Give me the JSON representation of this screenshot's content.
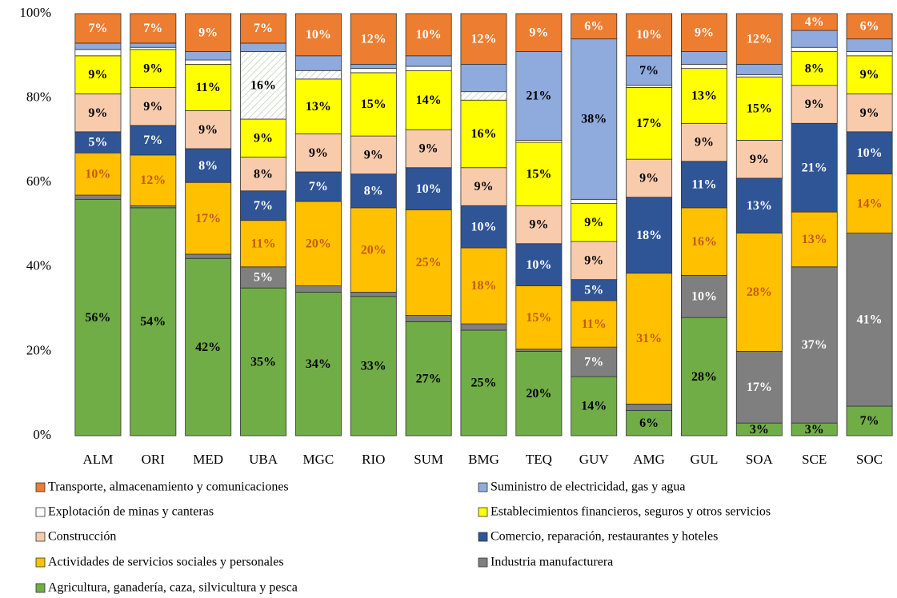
{
  "chart_data": {
    "type": "stacked_bar",
    "categories": [
      "ALM",
      "ORI",
      "MED",
      "UBA",
      "MGC",
      "RIO",
      "SUM",
      "BMG",
      "TEQ",
      "GUV",
      "AMG",
      "GUL",
      "SOA",
      "SCE",
      "SOC"
    ],
    "ylim": [
      0,
      100
    ],
    "yticks": [
      {
        "value": 0,
        "label": "0%"
      },
      {
        "value": 20,
        "label": "20%"
      },
      {
        "value": 40,
        "label": "40%"
      },
      {
        "value": 60,
        "label": "60%"
      },
      {
        "value": 80,
        "label": "80%"
      },
      {
        "value": 100,
        "label": "100%"
      }
    ],
    "grid": false,
    "series": [
      {
        "name": "Transporte, almacenamiento y comunicaciones",
        "color": "#ed7d31",
        "label_color": "#ffffff",
        "values": [
          7,
          7,
          9,
          7,
          10,
          12,
          10,
          12,
          9,
          6,
          10,
          9,
          12,
          4,
          6
        ],
        "value_labels": [
          "7%",
          "7%",
          "9%",
          "7%",
          "10%",
          "12%",
          "10%",
          "12%",
          "9%",
          "6%",
          "10%",
          "9%",
          "12%",
          "4%",
          "6%"
        ]
      },
      {
        "name": "Suministro de electricidad, gas y agua",
        "color": "#8faadc",
        "label_color": "#000000",
        "values": [
          1.5,
          1,
          2,
          2,
          3.5,
          1,
          2.5,
          6.5,
          21,
          38,
          7,
          3,
          2.5,
          4,
          3
        ],
        "value_labels": [
          null,
          null,
          null,
          null,
          null,
          null,
          null,
          null,
          "21%",
          "38%",
          "7%",
          null,
          null,
          null,
          null
        ]
      },
      {
        "name": "Explotación de minas y canteras",
        "color": "#ffffff",
        "label_color": "#000000",
        "values": [
          1.5,
          0.5,
          1,
          16,
          2,
          1,
          1,
          2,
          0.5,
          1,
          0.5,
          1,
          0.5,
          1,
          1
        ],
        "value_labels": [
          null,
          null,
          null,
          "16%",
          null,
          null,
          null,
          null,
          null,
          null,
          null,
          null,
          null,
          null,
          null
        ]
      },
      {
        "name": "Establecimientos financieros, seguros y otros servicios",
        "color": "#ffff00",
        "label_color": "#000000",
        "values": [
          9,
          9,
          11,
          9,
          13,
          15,
          14,
          16,
          15,
          9,
          17,
          13,
          15,
          8,
          9
        ],
        "value_labels": [
          "9%",
          "9%",
          "11%",
          "9%",
          "13%",
          "15%",
          "14%",
          "16%",
          "15%",
          "9%",
          "17%",
          "13%",
          "15%",
          "8%",
          "9%"
        ]
      },
      {
        "name": "Construcción",
        "color": "#f8cbad",
        "label_color": "#000000",
        "values": [
          9,
          9,
          9,
          8,
          9,
          9,
          9,
          9,
          9,
          9,
          9,
          9,
          9,
          9,
          9
        ],
        "value_labels": [
          "9%",
          "9%",
          "9%",
          "8%",
          "9%",
          "9%",
          "9%",
          "9%",
          "9%",
          "9%",
          "9%",
          "9%",
          "9%",
          "9%",
          "9%"
        ]
      },
      {
        "name": "Comercio, reparación, restaurantes y hoteles",
        "color": "#2f5597",
        "label_color": "#ffffff",
        "values": [
          5,
          7,
          8,
          7,
          7,
          8,
          10,
          10,
          10,
          5,
          18,
          11,
          13,
          21,
          10
        ],
        "value_labels": [
          "5%",
          "7%",
          "8%",
          "7%",
          "7%",
          "8%",
          "10%",
          "10%",
          "10%",
          "5%",
          "18%",
          "11%",
          "13%",
          "21%",
          "10%"
        ]
      },
      {
        "name": "Actividades de servicios sociales y personales",
        "color": "#ffc000",
        "label_color": "#c55a11",
        "values": [
          10,
          12,
          17,
          11,
          20,
          20,
          25,
          18,
          15,
          11,
          31,
          16,
          28,
          13,
          14
        ],
        "value_labels": [
          "10%",
          "12%",
          "17%",
          "11%",
          "20%",
          "20%",
          "25%",
          "18%",
          "15%",
          "11%",
          "31%",
          "16%",
          "28%",
          "13%",
          "14%"
        ]
      },
      {
        "name": "Industria manufacturera",
        "color": "#7f7f7f",
        "label_color": "#ffffff",
        "values": [
          1,
          0.5,
          1,
          5,
          1.5,
          1,
          1.5,
          1.5,
          0.5,
          7,
          1.5,
          10,
          17,
          37,
          41
        ],
        "value_labels": [
          null,
          null,
          null,
          "5%",
          null,
          null,
          null,
          null,
          null,
          "7%",
          null,
          "10%",
          "17%",
          "37%",
          "41%"
        ]
      },
      {
        "name": "Agricultura, ganadería, caza, silvicultura y pesca",
        "color": "#70ad47",
        "label_color": "#000000",
        "values": [
          56,
          54,
          42,
          35,
          34,
          33,
          27,
          25,
          20,
          14,
          6,
          28,
          3,
          3,
          7
        ],
        "value_labels": [
          "56%",
          "54%",
          "42%",
          "35%",
          "34%",
          "33%",
          "27%",
          "25%",
          "20%",
          "14%",
          "6%",
          "28%",
          "3%",
          "3%",
          "7%"
        ]
      }
    ]
  }
}
